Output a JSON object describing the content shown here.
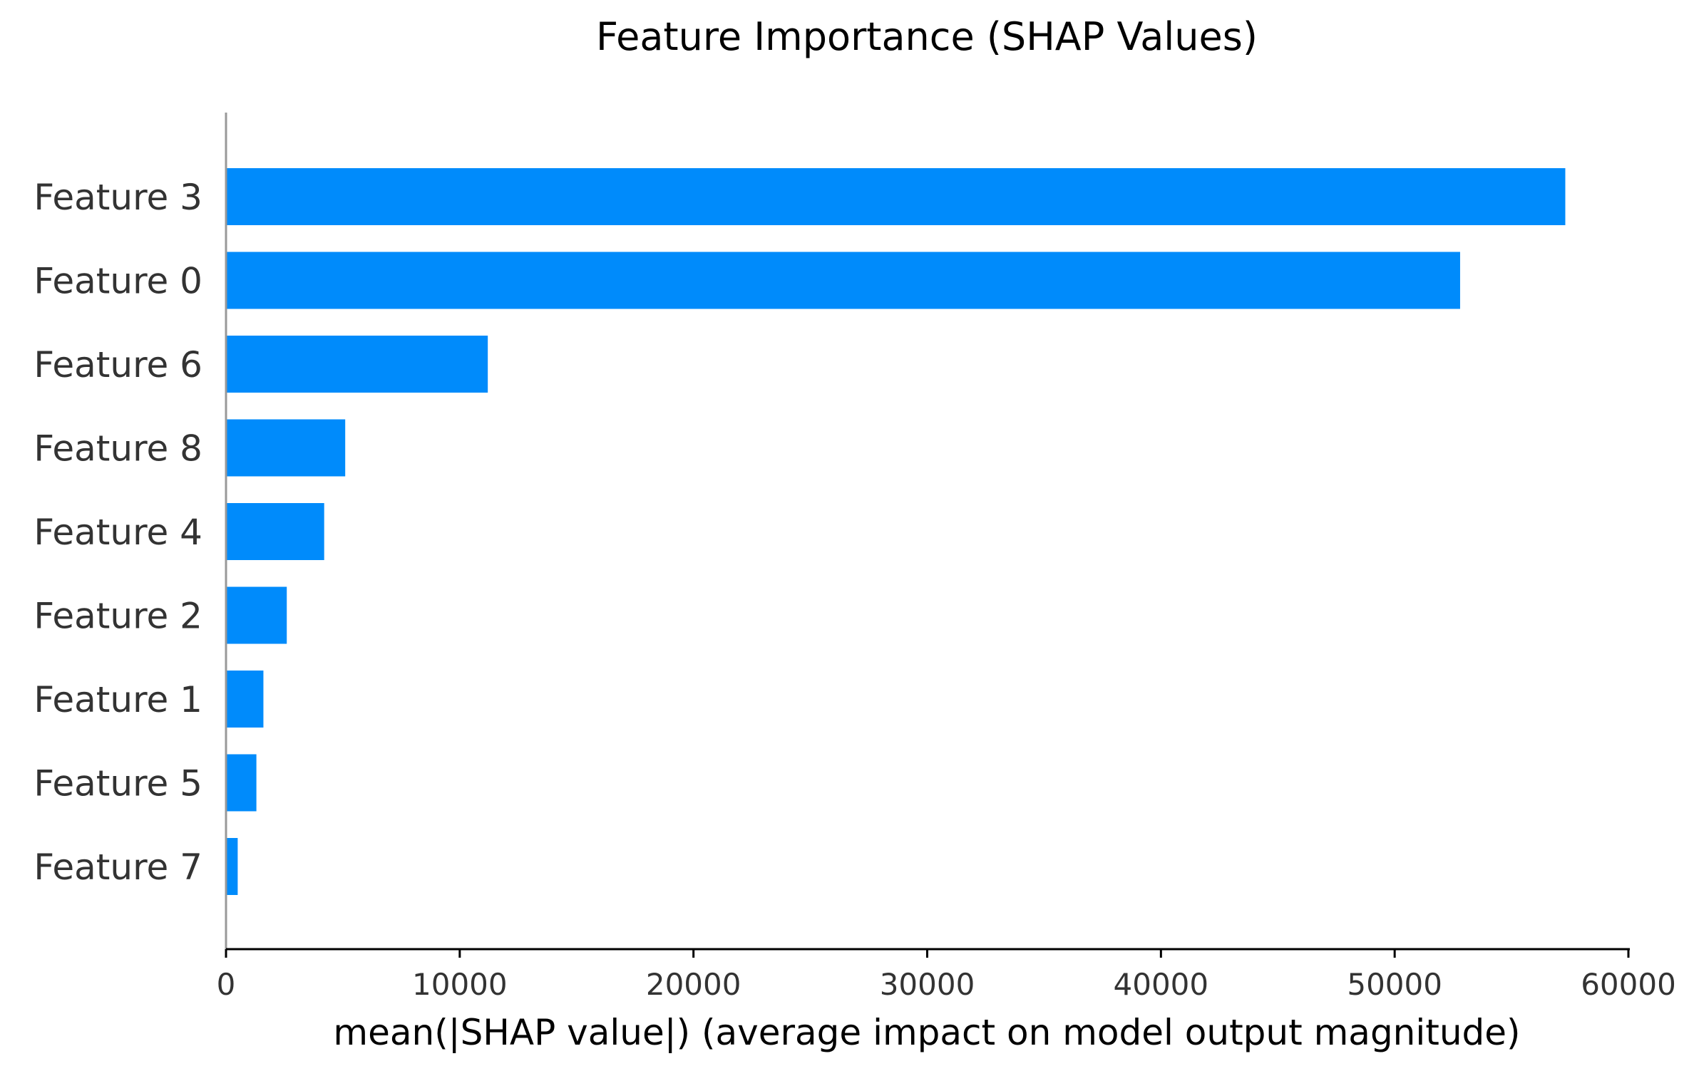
{
  "chart_data": {
    "type": "bar",
    "orientation": "horizontal",
    "title": "Feature Importance (SHAP Values)",
    "xlabel": "mean(|SHAP value|) (average impact on model output magnitude)",
    "ylabel": "",
    "categories": [
      "Feature 3",
      "Feature 0",
      "Feature 6",
      "Feature 8",
      "Feature 4",
      "Feature 2",
      "Feature 1",
      "Feature 5",
      "Feature 7"
    ],
    "values": [
      57300,
      52800,
      11200,
      5100,
      4200,
      2600,
      1600,
      1300,
      500
    ],
    "xlim": [
      0,
      60000
    ],
    "xticks": [
      "0",
      "10000",
      "20000",
      "30000",
      "40000",
      "50000",
      "60000"
    ],
    "xtick_values": [
      0,
      10000,
      20000,
      30000,
      40000,
      50000,
      60000
    ],
    "grid": false,
    "legend": "none",
    "colors": {
      "bar": "#008bfb",
      "axis": "#999999",
      "baseline": "#000000"
    }
  }
}
